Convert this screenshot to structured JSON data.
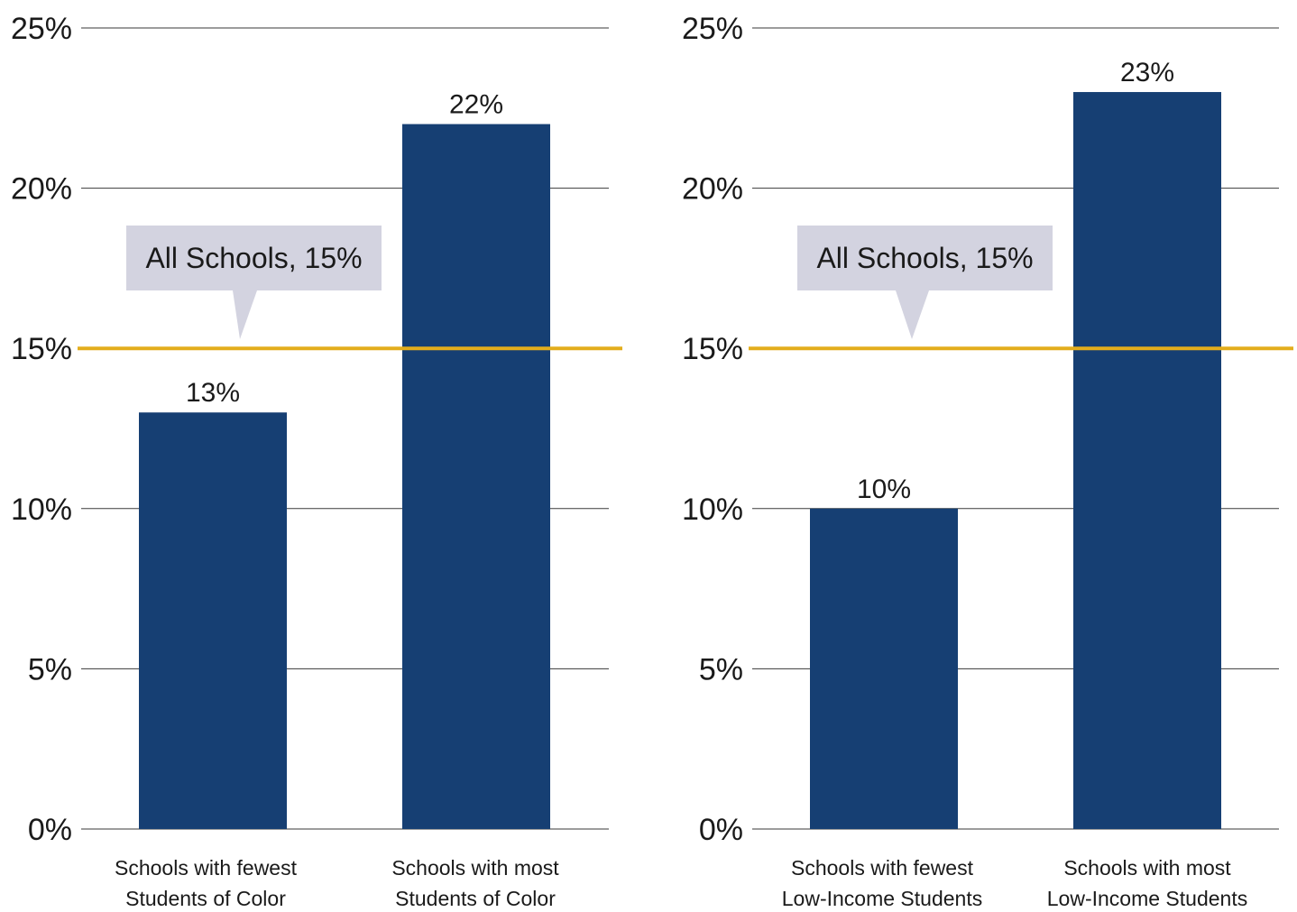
{
  "chart_data": [
    {
      "type": "bar",
      "categories": [
        [
          "Schools with fewest",
          "Students of Color"
        ],
        [
          "Schools with most",
          "Students of Color"
        ]
      ],
      "values": [
        13,
        22
      ],
      "value_labels": [
        "13%",
        "22%"
      ],
      "ylim": [
        0,
        25
      ],
      "yticks": [
        0,
        5,
        10,
        15,
        20,
        25
      ],
      "ytick_labels": [
        "0%",
        "5%",
        "10%",
        "15%",
        "20%",
        "25%"
      ],
      "grid": true,
      "bar_color": "#163f73",
      "reference_line": {
        "value": 15,
        "label": "All Schools, 15%",
        "color": "#e3ad1c"
      },
      "callout_color": "#d3d3e0"
    },
    {
      "type": "bar",
      "categories": [
        [
          "Schools with fewest",
          "Low-Income Students"
        ],
        [
          "Schools with most",
          "Low-Income Students"
        ]
      ],
      "values": [
        10,
        23
      ],
      "value_labels": [
        "10%",
        "23%"
      ],
      "ylim": [
        0,
        25
      ],
      "yticks": [
        0,
        5,
        10,
        15,
        20,
        25
      ],
      "ytick_labels": [
        "0%",
        "5%",
        "10%",
        "15%",
        "20%",
        "25%"
      ],
      "grid": true,
      "bar_color": "#163f73",
      "reference_line": {
        "value": 15,
        "label": "All Schools, 15%",
        "color": "#e3ad1c"
      },
      "callout_color": "#d3d3e0"
    }
  ]
}
